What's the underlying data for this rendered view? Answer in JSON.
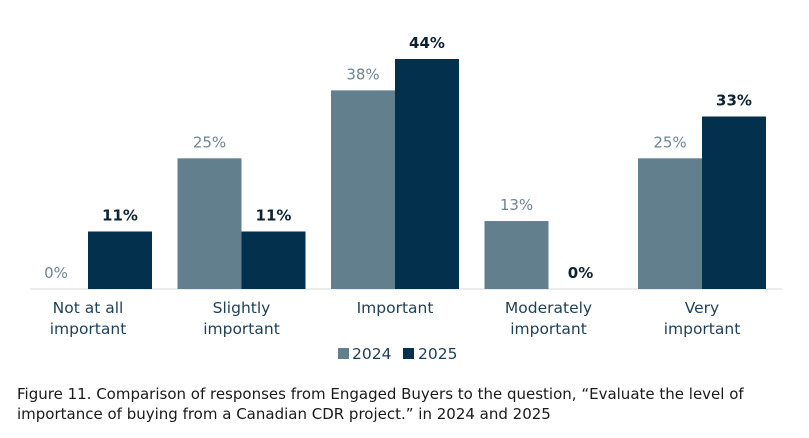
{
  "chart_data": {
    "type": "bar",
    "categories": [
      [
        "Not at all",
        "important"
      ],
      [
        "Slightly",
        "important"
      ],
      [
        "Important"
      ],
      [
        "Moderately",
        "important"
      ],
      [
        "Very",
        "important"
      ]
    ],
    "series": [
      {
        "name": "2024",
        "values": [
          0,
          25,
          38,
          13,
          25
        ],
        "labels": [
          "0%",
          "25%",
          "38%",
          "13%",
          "25%"
        ],
        "color": "#627f8d",
        "label_color": "#6f8592",
        "label_weight": "normal"
      },
      {
        "name": "2025",
        "values": [
          11,
          11,
          44,
          0,
          33
        ],
        "labels": [
          "11%",
          "11%",
          "44%",
          "0%",
          "33%"
        ],
        "color": "#02304d",
        "label_color": "#0d2233",
        "label_weight": "bold"
      }
    ],
    "ylim": [
      0,
      44
    ],
    "title": "",
    "xlabel": "",
    "ylabel": "",
    "grid": false,
    "legend_position": "bottom-center"
  },
  "caption": "Figure 11. Comparison of responses from Engaged Buyers to the question, “Evaluate the level of importance of buying from a Canadian CDR project.” in 2024 and 2025"
}
